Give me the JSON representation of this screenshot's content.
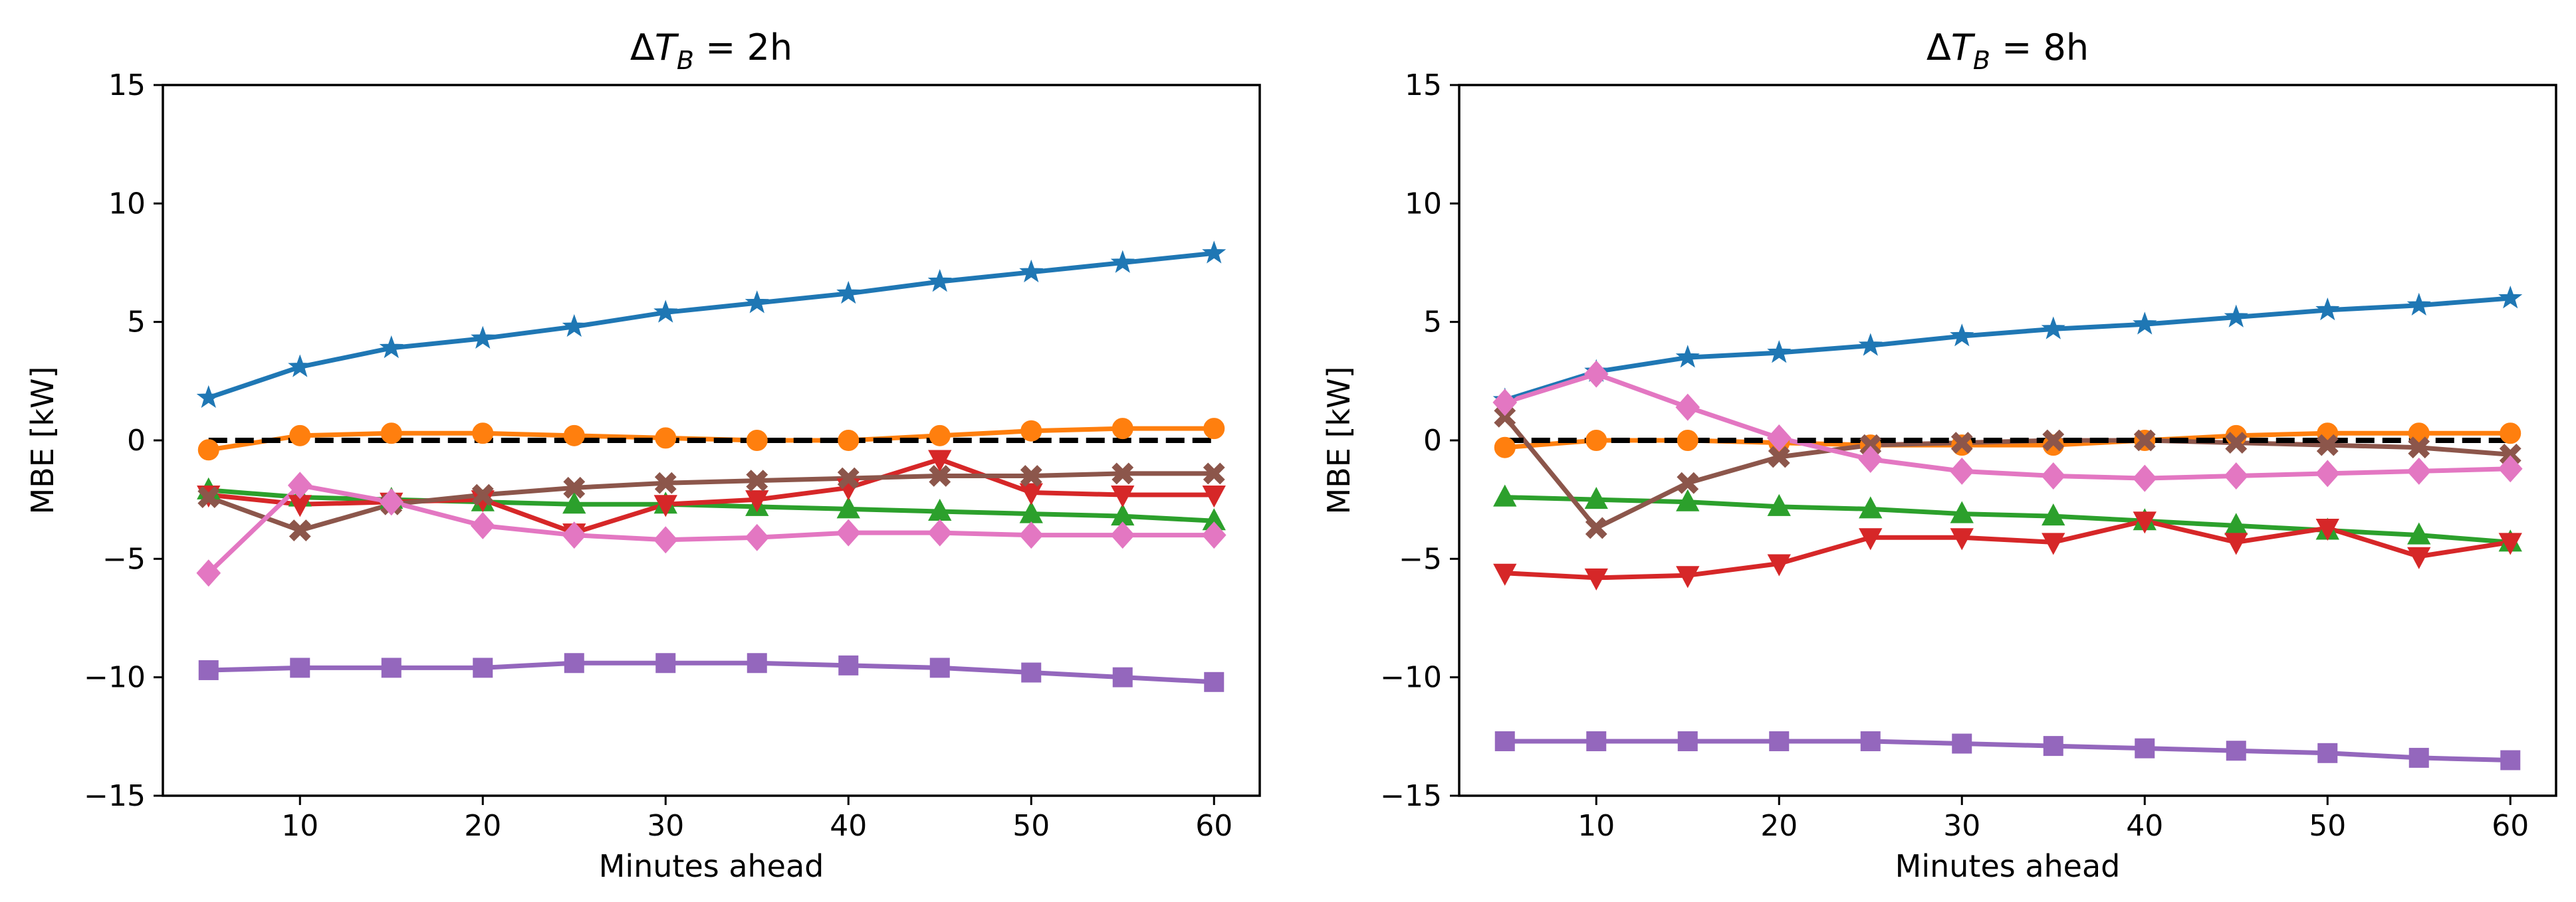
{
  "chart_data": [
    {
      "type": "line",
      "title": "ΔT_B = 2h",
      "title_parts": {
        "delta": "Δ",
        "var": "T",
        "sub": "B",
        "rest": " = 2h"
      },
      "xlabel": "Minutes ahead",
      "ylabel": "MBE [kW]",
      "xlim": [
        2.5,
        62.5
      ],
      "ylim": [
        -15,
        15
      ],
      "xticks": [
        "10",
        "20",
        "30",
        "40",
        "50",
        "60"
      ],
      "yticks": [
        "−15",
        "−10",
        "−5",
        "0",
        "5",
        "10",
        "15"
      ],
      "x": [
        5,
        10,
        15,
        20,
        25,
        30,
        35,
        40,
        45,
        50,
        55,
        60
      ],
      "series": [
        {
          "color": "#1f77b4",
          "marker": "star",
          "values": [
            1.8,
            3.1,
            3.9,
            4.3,
            4.8,
            5.4,
            5.8,
            6.2,
            6.7,
            7.1,
            7.5,
            7.9
          ]
        },
        {
          "color": "#ff7f0e",
          "marker": "circle",
          "values": [
            -0.4,
            0.2,
            0.3,
            0.3,
            0.2,
            0.1,
            0.0,
            0.0,
            0.2,
            0.4,
            0.5,
            0.5
          ]
        },
        {
          "color": "#2ca02c",
          "marker": "triangle-up",
          "values": [
            -2.1,
            -2.4,
            -2.5,
            -2.6,
            -2.7,
            -2.7,
            -2.8,
            -2.9,
            -3.0,
            -3.1,
            -3.2,
            -3.4
          ]
        },
        {
          "color": "#d62728",
          "marker": "triangle-down",
          "values": [
            -2.3,
            -2.7,
            -2.6,
            -2.5,
            -3.9,
            -2.7,
            -2.5,
            -2.0,
            -0.8,
            -2.2,
            -2.3,
            -2.3
          ]
        },
        {
          "color": "#9467bd",
          "marker": "square",
          "values": [
            -9.7,
            -9.6,
            -9.6,
            -9.6,
            -9.4,
            -9.4,
            -9.4,
            -9.5,
            -9.6,
            -9.8,
            -10.0,
            -10.2
          ]
        },
        {
          "color": "#8c564b",
          "marker": "x",
          "values": [
            -2.4,
            -3.8,
            -2.7,
            -2.3,
            -2.0,
            -1.8,
            -1.7,
            -1.6,
            -1.5,
            -1.5,
            -1.4,
            -1.4
          ]
        },
        {
          "color": "#e377c2",
          "marker": "diamond",
          "values": [
            -5.6,
            -1.9,
            -2.6,
            -3.6,
            -4.0,
            -4.2,
            -4.1,
            -3.9,
            -3.9,
            -4.0,
            -4.0,
            -4.0
          ]
        },
        {
          "color": "#000000",
          "marker": "none",
          "dashed": true,
          "values": [
            0,
            0,
            0,
            0,
            0,
            0,
            0,
            0,
            0,
            0,
            0,
            0
          ]
        }
      ]
    },
    {
      "type": "line",
      "title": "ΔT_B = 8h",
      "title_parts": {
        "delta": "Δ",
        "var": "T",
        "sub": "B",
        "rest": " = 8h"
      },
      "xlabel": "Minutes ahead",
      "ylabel": "MBE [kW]",
      "xlim": [
        2.5,
        62.5
      ],
      "ylim": [
        -15,
        15
      ],
      "xticks": [
        "10",
        "20",
        "30",
        "40",
        "50",
        "60"
      ],
      "yticks": [
        "−15",
        "−10",
        "−5",
        "0",
        "5",
        "10",
        "15"
      ],
      "x": [
        5,
        10,
        15,
        20,
        25,
        30,
        35,
        40,
        45,
        50,
        55,
        60
      ],
      "series": [
        {
          "color": "#1f77b4",
          "marker": "star",
          "values": [
            1.7,
            2.9,
            3.5,
            3.7,
            4.0,
            4.4,
            4.7,
            4.9,
            5.2,
            5.5,
            5.7,
            6.0
          ]
        },
        {
          "color": "#ff7f0e",
          "marker": "circle",
          "values": [
            -0.3,
            0.0,
            0.0,
            -0.1,
            -0.2,
            -0.2,
            -0.2,
            0.0,
            0.2,
            0.3,
            0.3,
            0.3
          ]
        },
        {
          "color": "#2ca02c",
          "marker": "triangle-up",
          "values": [
            -2.4,
            -2.5,
            -2.6,
            -2.8,
            -2.9,
            -3.1,
            -3.2,
            -3.4,
            -3.6,
            -3.8,
            -4.0,
            -4.3
          ]
        },
        {
          "color": "#d62728",
          "marker": "triangle-down",
          "values": [
            -5.6,
            -5.8,
            -5.7,
            -5.2,
            -4.1,
            -4.1,
            -4.3,
            -3.4,
            -4.3,
            -3.7,
            -4.9,
            -4.3
          ]
        },
        {
          "color": "#9467bd",
          "marker": "square",
          "values": [
            -12.7,
            -12.7,
            -12.7,
            -12.7,
            -12.7,
            -12.8,
            -12.9,
            -13.0,
            -13.1,
            -13.2,
            -13.4,
            -13.5
          ]
        },
        {
          "color": "#8c564b",
          "marker": "x",
          "values": [
            1.0,
            -3.7,
            -1.8,
            -0.7,
            -0.2,
            -0.1,
            0.0,
            0.0,
            -0.1,
            -0.2,
            -0.3,
            -0.6
          ]
        },
        {
          "color": "#e377c2",
          "marker": "diamond",
          "values": [
            1.6,
            2.8,
            1.4,
            0.1,
            -0.8,
            -1.3,
            -1.5,
            -1.6,
            -1.5,
            -1.4,
            -1.3,
            -1.2
          ]
        },
        {
          "color": "#000000",
          "marker": "none",
          "dashed": true,
          "values": [
            0,
            0,
            0,
            0,
            0,
            0,
            0,
            0,
            0,
            0,
            0,
            0
          ]
        }
      ]
    }
  ]
}
